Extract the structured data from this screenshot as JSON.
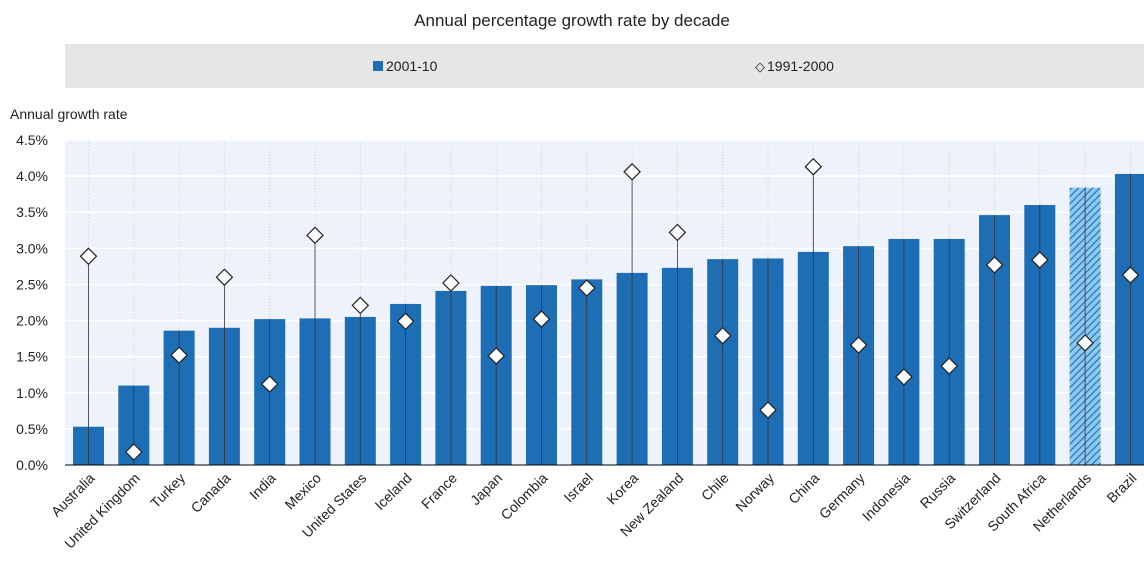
{
  "chart_data": {
    "type": "bar",
    "title": "Annual percentage growth rate by decade",
    "ylabel": "Annual growth rate",
    "xlabel": "",
    "ylim": [
      0,
      4.5
    ],
    "yticks": [
      "0.0%",
      "0.5%",
      "1.0%",
      "1.5%",
      "2.0%",
      "2.5%",
      "3.0%",
      "3.5%",
      "4.0%",
      "4.5%"
    ],
    "grid": true,
    "legend_placement": "top",
    "categories": [
      "Australia",
      "United Kingdom",
      "Turkey",
      "Canada",
      "India",
      "Mexico",
      "United States",
      "Iceland",
      "France",
      "Japan",
      "Colombia",
      "Israel",
      "Korea",
      "New Zealand",
      "Chile",
      "Norway",
      "China",
      "Germany",
      "Indonesia",
      "Russia",
      "Switzerland",
      "South Africa",
      "Netherlands",
      "Brazil"
    ],
    "series": [
      {
        "name": "2001-10",
        "marker": "bar",
        "color": "#1e6eb5",
        "highlight_color": "#8ec8ee",
        "highlighted_category": "Netherlands",
        "values": [
          0.53,
          1.1,
          1.86,
          1.9,
          2.02,
          2.03,
          2.05,
          2.23,
          2.41,
          2.48,
          2.49,
          2.57,
          2.66,
          2.73,
          2.85,
          2.86,
          2.95,
          3.03,
          3.13,
          3.13,
          3.46,
          3.6,
          3.84,
          4.03
        ]
      },
      {
        "name": "1991-2000",
        "marker": "diamond",
        "color": "#ffffff",
        "values": [
          2.89,
          0.18,
          1.52,
          2.6,
          1.12,
          3.18,
          2.21,
          1.99,
          2.52,
          1.51,
          2.02,
          2.45,
          4.06,
          3.22,
          1.79,
          0.76,
          4.13,
          1.66,
          1.22,
          1.37,
          2.77,
          2.84,
          1.69,
          2.63
        ]
      }
    ]
  }
}
